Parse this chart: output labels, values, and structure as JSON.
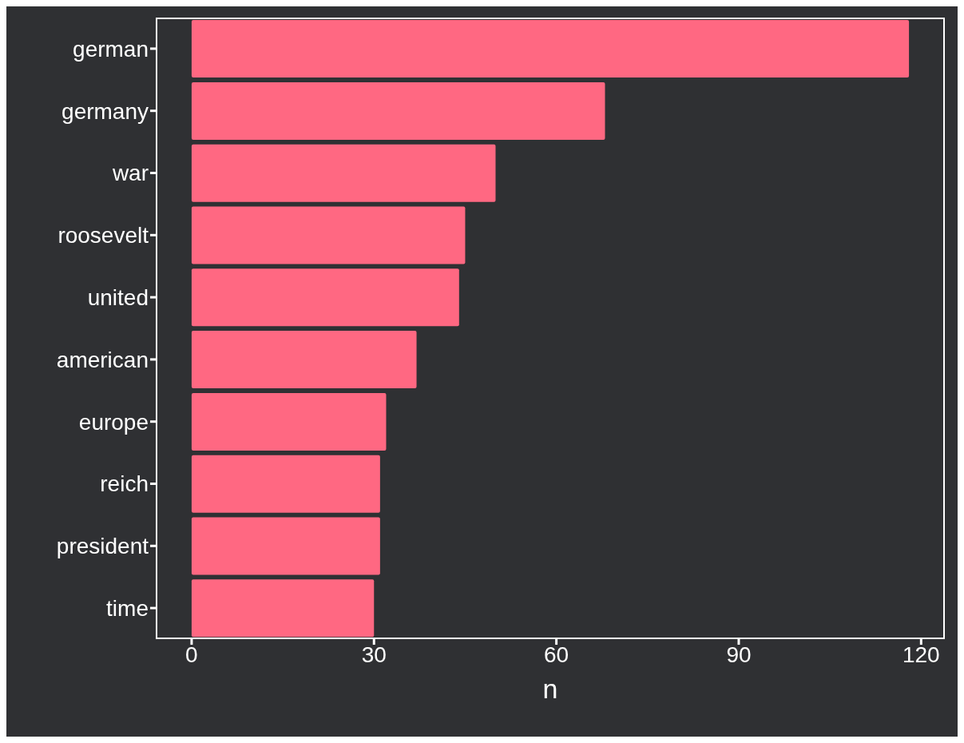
{
  "chart_data": {
    "type": "bar",
    "orientation": "horizontal",
    "xlabel": "n",
    "categories": [
      "german",
      "germany",
      "war",
      "roosevelt",
      "united",
      "american",
      "europe",
      "reich",
      "president",
      "time"
    ],
    "values": [
      118,
      68,
      50,
      45,
      44,
      37,
      32,
      31,
      31,
      30
    ],
    "color": "#ff6882",
    "xlim": [
      -5.9,
      123.9
    ],
    "xticks": [
      0,
      30,
      60,
      90,
      120
    ]
  }
}
